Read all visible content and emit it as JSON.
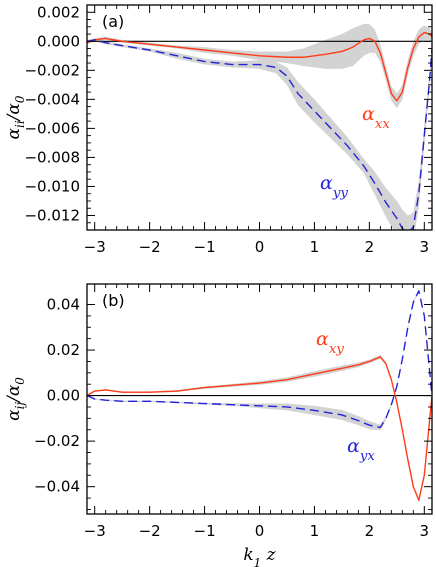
{
  "colors": {
    "red": "#ff3b1a",
    "blue": "#2323d8",
    "band": "#d3d3d3",
    "zero": "#000000"
  },
  "chart_data": [
    {
      "type": "line",
      "panel_label": "(a)",
      "xlabel": "",
      "ylabel": "α_ii/α_0",
      "ylabel_parts": [
        "α",
        "ii",
        "/α",
        "0"
      ],
      "xlim": [
        -3.14,
        3.14
      ],
      "ylim": [
        -0.013,
        0.0025
      ],
      "xticks": [
        -3,
        -2,
        -1,
        0,
        1,
        2,
        3
      ],
      "xtick_labels": [
        "−3",
        "−2",
        "−1",
        "0",
        "1",
        "2",
        "3"
      ],
      "yticks": [
        0.002,
        0.0,
        -0.002,
        -0.004,
        -0.006,
        -0.008,
        -0.01,
        -0.012
      ],
      "ytick_labels": [
        "0.002",
        "0.000",
        "−0.002",
        "−0.004",
        "−0.006",
        "−0.008",
        "−0.010",
        "−0.012"
      ],
      "zero_line": true,
      "series": [
        {
          "name": "α_xx",
          "name_parts": [
            "α",
            "xx"
          ],
          "label_position": "right of minimum",
          "color": "red",
          "style": "solid",
          "x": [
            -3.14,
            -3.0,
            -2.8,
            -2.5,
            -2.0,
            -1.5,
            -1.0,
            -0.5,
            0.0,
            0.5,
            0.8,
            1.0,
            1.2,
            1.5,
            1.7,
            1.9,
            2.0,
            2.1,
            2.2,
            2.3,
            2.4,
            2.5,
            2.6,
            2.7,
            2.8,
            2.9,
            3.0,
            3.1,
            3.14
          ],
          "y": [
            -0.0001,
            0.0001,
            0.0002,
            0.0,
            -0.0002,
            -0.0004,
            -0.0006,
            -0.0008,
            -0.001,
            -0.0011,
            -0.0011,
            -0.001,
            -0.0009,
            -0.0007,
            -0.0004,
            0.0001,
            0.0002,
            0.0,
            -0.0008,
            -0.0022,
            -0.0036,
            -0.0041,
            -0.0035,
            -0.0018,
            -0.0005,
            0.0003,
            0.0006,
            0.0005,
            0.0003
          ],
          "band": [
            0.0001,
            0.0001,
            0.0001,
            0.0001,
            0.0001,
            0.0001,
            0.0002,
            0.0002,
            0.0003,
            0.0004,
            0.0006,
            0.0008,
            0.001,
            0.0012,
            0.0013,
            0.0011,
            0.001,
            0.0008,
            0.0006,
            0.0005,
            0.0005,
            0.0005,
            0.0005,
            0.0005,
            0.0005,
            0.0005,
            0.0005,
            0.0004,
            0.0003
          ]
        },
        {
          "name": "α_yy",
          "name_parts": [
            "α",
            "yy"
          ],
          "label_position": "below curve",
          "color": "blue",
          "style": "dashed",
          "x": [
            -3.14,
            -3.0,
            -2.8,
            -2.5,
            -2.0,
            -1.5,
            -1.0,
            -0.5,
            0.0,
            0.3,
            0.5,
            0.7,
            1.0,
            1.3,
            1.6,
            1.9,
            2.1,
            2.3,
            2.5,
            2.6,
            2.7,
            2.8,
            2.9,
            3.0,
            3.1,
            3.14
          ],
          "y": [
            0.0,
            0.0001,
            -0.0001,
            -0.0003,
            -0.0006,
            -0.001,
            -0.0014,
            -0.0016,
            -0.0016,
            -0.0018,
            -0.0024,
            -0.0036,
            -0.0048,
            -0.006,
            -0.0072,
            -0.0086,
            -0.0098,
            -0.0111,
            -0.0122,
            -0.0129,
            -0.0132,
            -0.0128,
            -0.0105,
            -0.0065,
            -0.0025,
            -0.0005
          ],
          "band": [
            0.0001,
            0.0001,
            0.0001,
            0.0001,
            0.0001,
            0.0002,
            0.0002,
            0.0002,
            0.0003,
            0.0004,
            0.0006,
            0.0008,
            0.0008,
            0.0007,
            0.0006,
            0.0005,
            0.0008,
            0.001,
            0.0012,
            0.0013,
            0.0012,
            0.001,
            0.0009,
            0.0007,
            0.0005,
            0.0003
          ]
        }
      ]
    },
    {
      "type": "line",
      "panel_label": "(b)",
      "xlabel": "k_1 z",
      "xlabel_parts": [
        "k",
        "1",
        " z"
      ],
      "ylabel": "α_ij/α_0",
      "ylabel_parts": [
        "α",
        "ij",
        "/α",
        "0"
      ],
      "xlim": [
        -3.14,
        3.14
      ],
      "ylim": [
        -0.052,
        0.049
      ],
      "xticks": [
        -3,
        -2,
        -1,
        0,
        1,
        2,
        3
      ],
      "xtick_labels": [
        "−3",
        "−2",
        "−1",
        "0",
        "1",
        "2",
        "3"
      ],
      "yticks": [
        0.04,
        0.02,
        0.0,
        -0.02,
        -0.04
      ],
      "ytick_labels": [
        "0.04",
        "0.02",
        "0.00",
        "−0.02",
        "−0.04"
      ],
      "zero_line": true,
      "series": [
        {
          "name": "α_xy",
          "name_parts": [
            "α",
            "xy"
          ],
          "label_position": "above curve",
          "color": "red",
          "style": "solid",
          "x": [
            -3.14,
            -3.0,
            -2.8,
            -2.5,
            -2.0,
            -1.5,
            -1.0,
            -0.5,
            0.0,
            0.5,
            1.0,
            1.5,
            1.8,
            2.0,
            2.2,
            2.3,
            2.4,
            2.5,
            2.6,
            2.7,
            2.8,
            2.9,
            3.0,
            3.1,
            3.14
          ],
          "y": [
            0.0,
            0.002,
            0.0025,
            0.0015,
            0.0015,
            0.002,
            0.0035,
            0.0045,
            0.0055,
            0.007,
            0.0095,
            0.012,
            0.0135,
            0.015,
            0.017,
            0.014,
            0.007,
            -0.003,
            -0.015,
            -0.028,
            -0.04,
            -0.046,
            -0.035,
            -0.01,
            0.0
          ],
          "band": [
            0.0003,
            0.0003,
            0.0003,
            0.0003,
            0.0003,
            0.0004,
            0.0005,
            0.0006,
            0.0008,
            0.001,
            0.0012,
            0.0012,
            0.001,
            0.0008,
            0.0008,
            0.0006,
            0.0005,
            0.0005,
            0.0005,
            0.0005,
            0.0005,
            0.0005,
            0.0005,
            0.0004,
            0.0003
          ]
        },
        {
          "name": "α_yx",
          "name_parts": [
            "α",
            "yx"
          ],
          "label_position": "below curve",
          "color": "blue",
          "style": "dashed",
          "x": [
            -3.14,
            -3.0,
            -2.8,
            -2.5,
            -2.0,
            -1.5,
            -1.0,
            -0.5,
            0.0,
            0.5,
            1.0,
            1.5,
            1.8,
            2.0,
            2.2,
            2.3,
            2.4,
            2.5,
            2.6,
            2.7,
            2.8,
            2.9,
            3.0,
            3.1,
            3.14
          ],
          "y": [
            0.0,
            -0.0015,
            -0.002,
            -0.0025,
            -0.0025,
            -0.003,
            -0.0035,
            -0.004,
            -0.0045,
            -0.005,
            -0.0065,
            -0.0085,
            -0.011,
            -0.013,
            -0.014,
            -0.01,
            -0.004,
            0.004,
            0.016,
            0.03,
            0.041,
            0.046,
            0.035,
            0.01,
            0.0
          ],
          "band": [
            0.0003,
            0.0003,
            0.0003,
            0.0003,
            0.0003,
            0.0003,
            0.0004,
            0.0006,
            0.001,
            0.0015,
            0.002,
            0.0022,
            0.002,
            0.0018,
            0.0012,
            0.0008,
            0.0006,
            0.0005,
            0.0005,
            0.0005,
            0.0005,
            0.0005,
            0.0005,
            0.0004,
            0.0003
          ]
        }
      ]
    }
  ]
}
